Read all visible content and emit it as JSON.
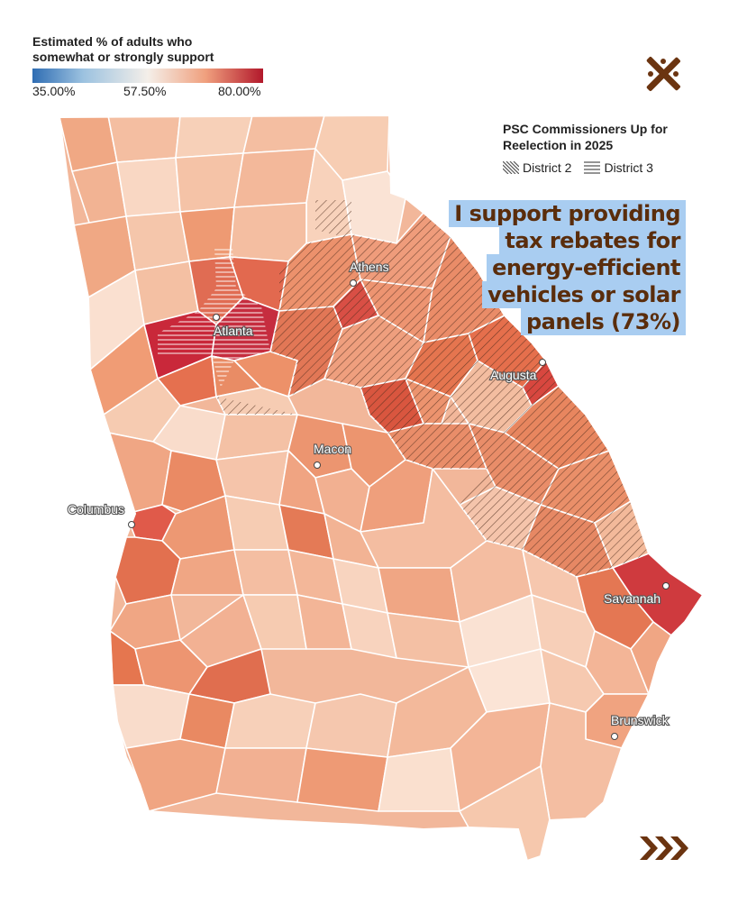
{
  "legend": {
    "title_line1": "Estimated % of adults who",
    "title_line2": "somewhat or strongly support",
    "min_label": "35.00%",
    "mid_label": "57.50%",
    "max_label": "80.00%",
    "scale_min": 35.0,
    "scale_mid": 57.5,
    "scale_max": 80.0,
    "colors": {
      "low": "#2f6db3",
      "mid": "#f4efe9",
      "high": "#b2182b"
    }
  },
  "psc": {
    "title_line1": "PSC Commissioners Up for",
    "title_line2": "Reelection in 2025",
    "district2_label": "District 2",
    "district3_label": "District 3"
  },
  "callout": {
    "lines": [
      "I support providing",
      "tax rebates for",
      "energy-efficient",
      "vehicles or solar",
      "panels (73%)"
    ],
    "background": "#a9cdf1",
    "text_color": "#5a2d0c"
  },
  "cities": {
    "atlanta": "Atlanta",
    "athens": "Athens",
    "augusta": "Augusta",
    "macon": "Macon",
    "columbus": "Columbus",
    "savannah": "Savannah",
    "brunswick": "Brunswick"
  },
  "icons": {
    "brand": "crossed-x-logo-icon",
    "next": "triple-chevron-right-icon"
  },
  "colors": {
    "brand_brown": "#6b3410"
  }
}
